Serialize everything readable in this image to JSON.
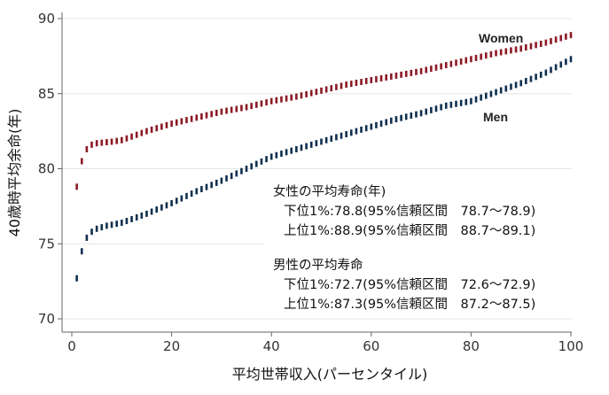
{
  "chart_data": {
    "type": "scatter",
    "xlabel": "平均世帯収入(パーセンタイル)",
    "ylabel": "40歳時平均余命(年)",
    "xlim": [
      0,
      100
    ],
    "ylim": [
      69.5,
      90
    ],
    "xticks": [
      0,
      20,
      40,
      60,
      80,
      100
    ],
    "yticks": [
      70,
      75,
      80,
      85,
      90
    ],
    "grid": "horizontal",
    "marker": "short vertical dash",
    "series": [
      {
        "name": "Women",
        "color": "#8b1a24",
        "anchors": [
          [
            1,
            78.8
          ],
          [
            2,
            80.5
          ],
          [
            3,
            81.3
          ],
          [
            4,
            81.6
          ],
          [
            5,
            81.7
          ],
          [
            8,
            81.8
          ],
          [
            10,
            81.9
          ],
          [
            15,
            82.5
          ],
          [
            20,
            83.0
          ],
          [
            25,
            83.4
          ],
          [
            30,
            83.8
          ],
          [
            35,
            84.1
          ],
          [
            40,
            84.5
          ],
          [
            45,
            84.8
          ],
          [
            50,
            85.2
          ],
          [
            55,
            85.6
          ],
          [
            60,
            85.9
          ],
          [
            65,
            86.2
          ],
          [
            70,
            86.5
          ],
          [
            75,
            86.9
          ],
          [
            80,
            87.3
          ],
          [
            85,
            87.7
          ],
          [
            90,
            88.0
          ],
          [
            95,
            88.4
          ],
          [
            100,
            88.9
          ]
        ]
      },
      {
        "name": "Men",
        "color": "#0e2f4e",
        "anchors": [
          [
            1,
            72.7
          ],
          [
            2,
            74.5
          ],
          [
            3,
            75.4
          ],
          [
            4,
            75.8
          ],
          [
            5,
            76.0
          ],
          [
            7,
            76.2
          ],
          [
            10,
            76.4
          ],
          [
            15,
            77.0
          ],
          [
            20,
            77.7
          ],
          [
            25,
            78.5
          ],
          [
            30,
            79.2
          ],
          [
            35,
            80.0
          ],
          [
            40,
            80.8
          ],
          [
            45,
            81.3
          ],
          [
            50,
            81.8
          ],
          [
            55,
            82.3
          ],
          [
            60,
            82.8
          ],
          [
            65,
            83.3
          ],
          [
            70,
            83.7
          ],
          [
            75,
            84.2
          ],
          [
            80,
            84.5
          ],
          [
            85,
            85.1
          ],
          [
            90,
            85.7
          ],
          [
            95,
            86.4
          ],
          [
            100,
            87.3
          ]
        ]
      }
    ],
    "annotations": [
      "女性の平均寿命(年)",
      "下位1%:78.8(95%信頼区間　78.7〜78.9)",
      "上位1%:88.9(95%信頼区間　88.7〜89.1)",
      "男性の平均寿命",
      "下位1%:72.7(95%信頼区間　72.6〜72.9)",
      "上位1%:87.3(95%信頼区間　87.2〜87.5)"
    ]
  }
}
